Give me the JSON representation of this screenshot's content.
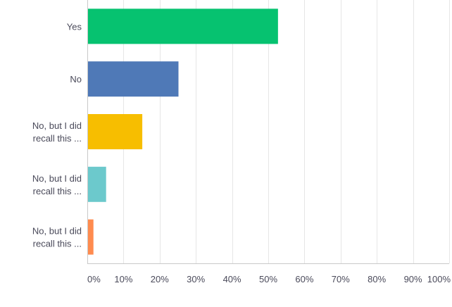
{
  "chart_data": {
    "type": "bar",
    "orientation": "horizontal",
    "categories": [
      [
        "Yes"
      ],
      [
        "No"
      ],
      [
        "No, but I did",
        "recall this ..."
      ],
      [
        "No, but I did",
        "recall this ..."
      ],
      [
        "No, but I did",
        "recall this ..."
      ]
    ],
    "values": [
      52.5,
      25,
      15,
      5,
      1.5
    ],
    "colors": [
      "#06c270",
      "#4f79b7",
      "#f7be00",
      "#6cc9cc",
      "#ff8b4f"
    ],
    "xlim": [
      0,
      100
    ],
    "xticks": [
      0,
      10,
      20,
      30,
      40,
      50,
      60,
      70,
      80,
      90,
      100
    ],
    "xtick_labels": [
      "0%",
      "10%",
      "20%",
      "30%",
      "40%",
      "50%",
      "60%",
      "70%",
      "80%",
      "90%",
      "100%"
    ],
    "grid": true,
    "title": "",
    "xlabel": "",
    "ylabel": ""
  }
}
